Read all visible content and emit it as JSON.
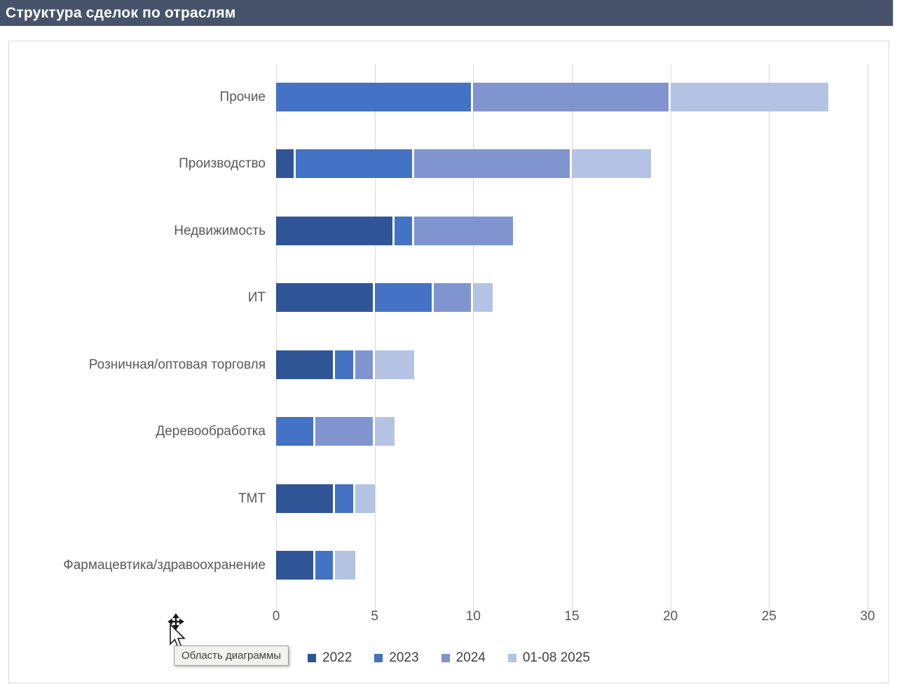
{
  "header": {
    "title": "Структура сделок по отраслям",
    "bg_color": "#46536B",
    "text_color": "#FFFFFF"
  },
  "tooltip": {
    "label": "Область диаграммы"
  },
  "chart_data": {
    "type": "bar",
    "orientation": "horizontal",
    "stacked": true,
    "title": "Структура сделок по отраслям",
    "categories": [
      "Прочие",
      "Производство",
      "Недвижимость",
      "ИТ",
      "Розничная/оптовая торговля",
      "Деревообработка",
      "ТМТ",
      "Фармацевтика/здравоохранение"
    ],
    "series": [
      {
        "name": "2022",
        "color": "#2F5597",
        "values": [
          0,
          1,
          6,
          5,
          3,
          0,
          3,
          2
        ]
      },
      {
        "name": "2023",
        "color": "#4472C4",
        "values": [
          10,
          6,
          1,
          3,
          1,
          2,
          1,
          1
        ]
      },
      {
        "name": "2024",
        "color": "#8094D0",
        "values": [
          10,
          8,
          5,
          2,
          1,
          3,
          0,
          0
        ]
      },
      {
        "name": "01-08 2025",
        "color": "#B4C2E4",
        "values": [
          8,
          4,
          0,
          1,
          2,
          1,
          1,
          1
        ]
      }
    ],
    "totals": [
      28,
      19,
      12,
      11,
      7,
      6,
      5,
      4
    ],
    "xlabel": "",
    "ylabel": "",
    "xlim": [
      0,
      30
    ],
    "x_ticks": [
      0,
      5,
      10,
      15,
      20,
      25,
      30
    ],
    "grid": true,
    "legend_position": "bottom",
    "colors": {
      "grid": "#D9D9D9",
      "axis_label": "#595959",
      "legend_text": "#404040",
      "chart_border": "#D9D9D9"
    }
  }
}
